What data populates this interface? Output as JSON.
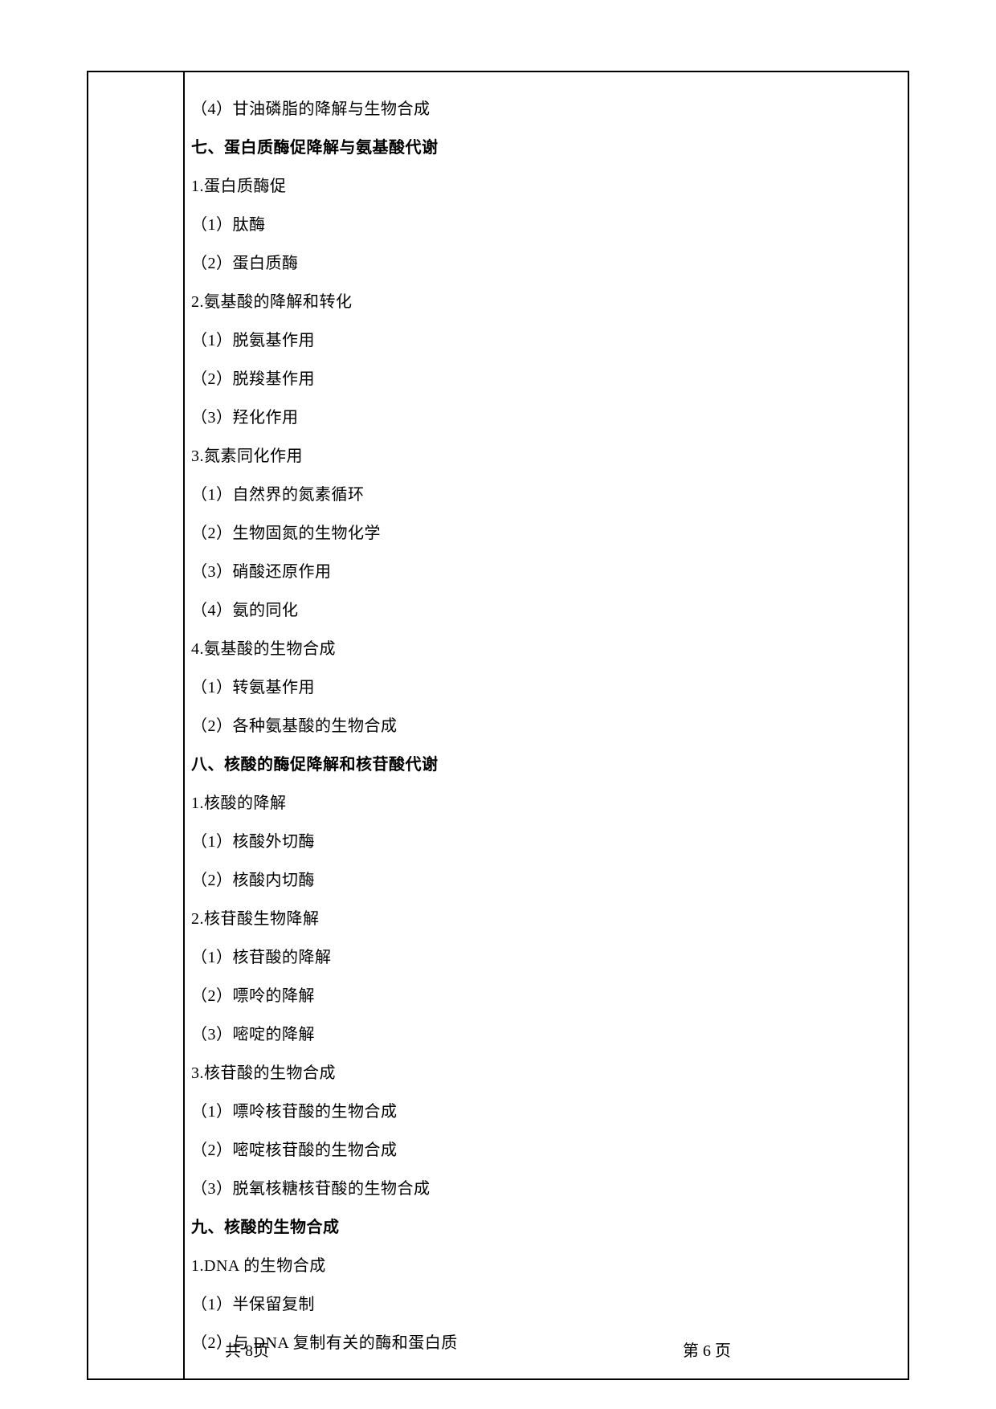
{
  "outline": {
    "items": [
      {
        "text": "（4）甘油磷脂的降解与生物合成",
        "bold": false
      },
      {
        "text": "七、蛋白质酶促降解与氨基酸代谢",
        "bold": true
      },
      {
        "text": "1.蛋白质酶促",
        "bold": false
      },
      {
        "text": "（1）肽酶",
        "bold": false
      },
      {
        "text": "（2）蛋白质酶",
        "bold": false
      },
      {
        "text": "2.氨基酸的降解和转化",
        "bold": false
      },
      {
        "text": "（1）脱氨基作用",
        "bold": false
      },
      {
        "text": "（2）脱羧基作用",
        "bold": false
      },
      {
        "text": "（3）羟化作用",
        "bold": false
      },
      {
        "text": "3.氮素同化作用",
        "bold": false
      },
      {
        "text": "（1）自然界的氮素循环",
        "bold": false
      },
      {
        "text": "（2）生物固氮的生物化学",
        "bold": false
      },
      {
        "text": "（3）硝酸还原作用",
        "bold": false
      },
      {
        "text": "（4）氨的同化",
        "bold": false
      },
      {
        "text": "4.氨基酸的生物合成",
        "bold": false
      },
      {
        "text": "（1）转氨基作用",
        "bold": false
      },
      {
        "text": "（2）各种氨基酸的生物合成",
        "bold": false
      },
      {
        "text": "八、核酸的酶促降解和核苷酸代谢",
        "bold": true
      },
      {
        "text": "1.核酸的降解",
        "bold": false
      },
      {
        "text": "（1）核酸外切酶",
        "bold": false
      },
      {
        "text": "（2）核酸内切酶",
        "bold": false
      },
      {
        "text": "2.核苷酸生物降解",
        "bold": false
      },
      {
        "text": "（1）核苷酸的降解",
        "bold": false
      },
      {
        "text": "（2）嘌呤的降解",
        "bold": false
      },
      {
        "text": "（3）嘧啶的降解",
        "bold": false
      },
      {
        "text": "3.核苷酸的生物合成",
        "bold": false
      },
      {
        "text": "（1）嘌呤核苷酸的生物合成",
        "bold": false
      },
      {
        "text": "（2）嘧啶核苷酸的生物合成",
        "bold": false
      },
      {
        "text": "（3）脱氧核糖核苷酸的生物合成",
        "bold": false
      },
      {
        "text": "九、核酸的生物合成",
        "bold": true
      },
      {
        "text": "1.DNA 的生物合成",
        "bold": false
      },
      {
        "text": "（1）半保留复制",
        "bold": false
      },
      {
        "text": "（2）与 DNA 复制有关的酶和蛋白质",
        "bold": false
      }
    ]
  },
  "footer": {
    "left": "共 8页",
    "right": "第 6 页"
  }
}
